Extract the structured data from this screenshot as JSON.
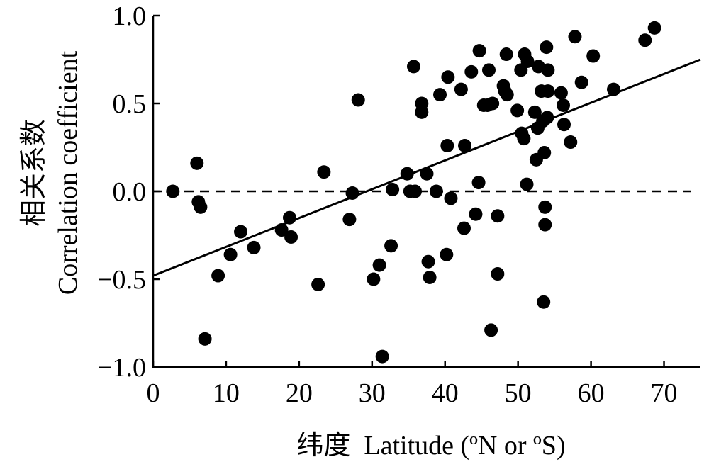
{
  "chart_data": {
    "type": "scatter",
    "xlabel": "纬度  Latitude (ºN or ºS)",
    "ylabel_cn": "相关系数",
    "ylabel_en": "Correlation coefficient",
    "xlim": [
      0,
      75
    ],
    "ylim": [
      -1.0,
      1.0
    ],
    "xticks": [
      0,
      10,
      20,
      30,
      40,
      50,
      60,
      70
    ],
    "yticks": [
      -1.0,
      -0.5,
      0.0,
      0.5,
      1.0
    ],
    "xtick_labels": [
      "0",
      "10",
      "20",
      "30",
      "40",
      "50",
      "60",
      "70"
    ],
    "ytick_labels": [
      "−1.0",
      "−0.5",
      "0.0",
      "0.5",
      "1.0"
    ],
    "grid": false,
    "colors": {
      "point": "#000000",
      "line": "#000000"
    },
    "reference_line": {
      "y": 0.0,
      "style": "dashed"
    },
    "fit_line": {
      "x": [
        0,
        75
      ],
      "y": [
        -0.48,
        0.75
      ]
    },
    "points": [
      {
        "x": 2.7,
        "y": 0.0
      },
      {
        "x": 6.0,
        "y": 0.16
      },
      {
        "x": 6.2,
        "y": -0.06
      },
      {
        "x": 6.5,
        "y": -0.09
      },
      {
        "x": 7.1,
        "y": -0.84
      },
      {
        "x": 8.9,
        "y": -0.48
      },
      {
        "x": 10.6,
        "y": -0.36
      },
      {
        "x": 12.0,
        "y": -0.23
      },
      {
        "x": 13.8,
        "y": -0.32
      },
      {
        "x": 17.6,
        "y": -0.22
      },
      {
        "x": 18.7,
        "y": -0.15
      },
      {
        "x": 18.9,
        "y": -0.26
      },
      {
        "x": 22.6,
        "y": -0.53
      },
      {
        "x": 23.4,
        "y": 0.11
      },
      {
        "x": 26.9,
        "y": -0.16
      },
      {
        "x": 27.3,
        "y": -0.01
      },
      {
        "x": 28.1,
        "y": 0.52
      },
      {
        "x": 30.2,
        "y": -0.5
      },
      {
        "x": 31.0,
        "y": -0.42
      },
      {
        "x": 31.4,
        "y": -0.94
      },
      {
        "x": 32.6,
        "y": -0.31
      },
      {
        "x": 32.8,
        "y": 0.01
      },
      {
        "x": 34.8,
        "y": 0.1
      },
      {
        "x": 35.2,
        "y": 0.0
      },
      {
        "x": 35.7,
        "y": 0.71
      },
      {
        "x": 35.9,
        "y": 0.0
      },
      {
        "x": 36.8,
        "y": 0.5
      },
      {
        "x": 36.8,
        "y": 0.45
      },
      {
        "x": 37.5,
        "y": 0.1
      },
      {
        "x": 37.7,
        "y": -0.4
      },
      {
        "x": 37.9,
        "y": -0.49
      },
      {
        "x": 38.8,
        "y": 0.0
      },
      {
        "x": 39.3,
        "y": 0.55
      },
      {
        "x": 40.2,
        "y": -0.36
      },
      {
        "x": 40.3,
        "y": 0.26
      },
      {
        "x": 40.4,
        "y": 0.65
      },
      {
        "x": 40.8,
        "y": -0.04
      },
      {
        "x": 42.2,
        "y": 0.58
      },
      {
        "x": 42.6,
        "y": -0.21
      },
      {
        "x": 42.7,
        "y": 0.26
      },
      {
        "x": 43.6,
        "y": 0.68
      },
      {
        "x": 44.2,
        "y": -0.13
      },
      {
        "x": 44.6,
        "y": 0.05
      },
      {
        "x": 44.7,
        "y": 0.8
      },
      {
        "x": 45.3,
        "y": 0.49
      },
      {
        "x": 45.8,
        "y": 0.49
      },
      {
        "x": 46.0,
        "y": 0.69
      },
      {
        "x": 46.3,
        "y": -0.79
      },
      {
        "x": 46.5,
        "y": 0.5
      },
      {
        "x": 47.2,
        "y": -0.47
      },
      {
        "x": 47.2,
        "y": -0.14
      },
      {
        "x": 48.0,
        "y": 0.6
      },
      {
        "x": 48.2,
        "y": 0.57
      },
      {
        "x": 48.4,
        "y": 0.78
      },
      {
        "x": 48.5,
        "y": 0.55
      },
      {
        "x": 49.9,
        "y": 0.46
      },
      {
        "x": 50.4,
        "y": 0.69
      },
      {
        "x": 50.5,
        "y": 0.33
      },
      {
        "x": 50.8,
        "y": 0.3
      },
      {
        "x": 50.9,
        "y": 0.78
      },
      {
        "x": 51.2,
        "y": 0.04
      },
      {
        "x": 51.3,
        "y": 0.74
      },
      {
        "x": 52.3,
        "y": 0.45
      },
      {
        "x": 52.5,
        "y": 0.18
      },
      {
        "x": 52.7,
        "y": 0.36
      },
      {
        "x": 52.8,
        "y": 0.71
      },
      {
        "x": 53.2,
        "y": 0.57
      },
      {
        "x": 53.4,
        "y": 0.4
      },
      {
        "x": 53.5,
        "y": -0.63
      },
      {
        "x": 53.6,
        "y": 0.22
      },
      {
        "x": 53.7,
        "y": -0.09
      },
      {
        "x": 53.7,
        "y": -0.19
      },
      {
        "x": 53.9,
        "y": 0.82
      },
      {
        "x": 54.0,
        "y": 0.42
      },
      {
        "x": 54.1,
        "y": 0.69
      },
      {
        "x": 54.1,
        "y": 0.57
      },
      {
        "x": 55.9,
        "y": 0.56
      },
      {
        "x": 56.2,
        "y": 0.49
      },
      {
        "x": 56.3,
        "y": 0.38
      },
      {
        "x": 57.2,
        "y": 0.28
      },
      {
        "x": 57.8,
        "y": 0.88
      },
      {
        "x": 58.7,
        "y": 0.62
      },
      {
        "x": 60.3,
        "y": 0.77
      },
      {
        "x": 63.1,
        "y": 0.58
      },
      {
        "x": 67.4,
        "y": 0.86
      },
      {
        "x": 68.7,
        "y": 0.93
      }
    ]
  }
}
